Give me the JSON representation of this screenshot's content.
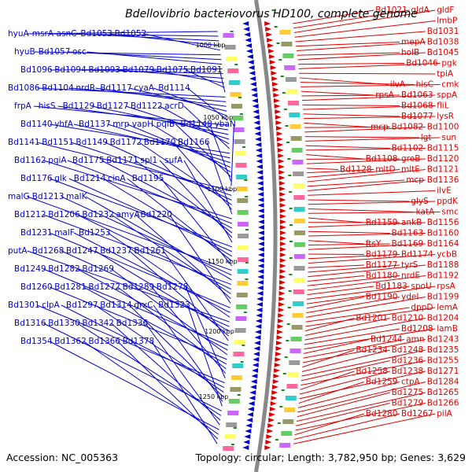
{
  "title": "Bdellovibrio bacteriovorus HD100, complete genome",
  "footer": {
    "accession": "Accession: NC_005363",
    "summary": "Topology: circular; Length: 3,782,950 bp; Genes: 3,629"
  },
  "colors": {
    "left": "#0000cc",
    "right": "#dd0000",
    "backbone": "#888888",
    "tick": "#1a8a1a"
  },
  "kbp_labels": [
    "1000 kbp",
    "1050 kbp",
    "1100 kbp",
    "1150 kbp",
    "1200 kbp",
    "1250 kbp"
  ],
  "left_labels": [
    "hyuA",
    "msrA",
    "asnC",
    "Bd1053",
    "Bd1052",
    "hyuB",
    "Bd1057",
    "osc",
    "Bd1096",
    "Bd1094",
    "Bd1093",
    "Bd1079",
    "Bd1075",
    "Bd1091",
    "Bd1086",
    "Bd1104",
    "nrdR",
    "Bd1117",
    "cyaA",
    "Bd1114",
    "frpA",
    "hisS",
    "Bd1129",
    "Bd1127",
    "Bd1122",
    "acrD",
    "Bd1140",
    "yhfA",
    "Bd1137",
    "mrp",
    "vapH",
    "pqiB",
    "Bd1148",
    "ybaN",
    "Bd1141",
    "Bd1151",
    "Bd1149",
    "Bd1172",
    "Bd1170",
    "Bd1166",
    "Bd1162",
    "pqiA",
    "Bd1175",
    "Bd1171",
    "spl1",
    "sufA",
    "Bd1176",
    "glk",
    "Bd1214",
    "cinA",
    "Bd1195",
    "malG",
    "Bd1213",
    "malK",
    "Bd1212",
    "Bd1206",
    "Bd1232",
    "amyA",
    "Bd1220",
    "Bd1231",
    "malF",
    "Bd1253",
    "putA",
    "Bd1268",
    "Bd1247",
    "Bd1237",
    "Bd1261",
    "Bd1249",
    "Bd1282",
    "Bd1269",
    "Bd1260",
    "Bd1281",
    "Bd1272",
    "Bd1289",
    "Bd1278",
    "Bd1301",
    "clpA",
    "Bd1297",
    "Bd1314",
    "grxC",
    "Bd1323",
    "Bd1316",
    "Bd1330",
    "Bd1342",
    "Bd1336",
    "Bd1354",
    "Bd1362",
    "Bd1366",
    "Bd1378"
  ],
  "right_labels": [
    "Bd1021",
    "gldA",
    "gldF",
    "lmbP",
    "Bd1031",
    "mepA",
    "Bd1038",
    "holB",
    "Bd1045",
    "Bd1046",
    "pgk",
    "tpiA",
    "ilvA",
    "hisC",
    "cmk",
    "rpsA",
    "Bd1063",
    "sppA",
    "Bd1068",
    "fliL",
    "Bd1077",
    "lysR",
    "mcp",
    "Bd1082",
    "Bd1100",
    "lgt",
    "sun",
    "Bd1102",
    "Bd1115",
    "Bd1108",
    "greB",
    "Bd1120",
    "Bd1128",
    "mltD",
    "mltE",
    "Bd1121",
    "mcp",
    "Bd1136",
    "ilvE",
    "glyS",
    "ppdK",
    "katA",
    "smc",
    "Bd1159",
    "ankB",
    "Bd1156",
    "Bd1163",
    "Bd1160",
    "ftsY",
    "Bd1169",
    "Bd1164",
    "Bd1179",
    "Bd1174",
    "ycbB",
    "Bd1177",
    "tyrS",
    "Bd1188",
    "Bd1180",
    "nrdE",
    "Bd1192",
    "Bd1183",
    "spoU",
    "rpsA",
    "Bd1190",
    "ydeI",
    "Bd1199",
    "dppD",
    "lemA",
    "Bd1201",
    "Bd1210",
    "Bd1204",
    "Bd1208",
    "lamB",
    "Bd1244",
    "amn",
    "Bd1243",
    "Bd1234",
    "Bd1248",
    "Bd1235",
    "Bd1236",
    "Bd1255",
    "Bd1258",
    "Bd1238",
    "Bd1271",
    "Bd1259",
    "ctpA",
    "Bd1284",
    "Bd1275",
    "Bd1265",
    "Bd1279",
    "Bd1266",
    "Bd1280",
    "Bd1267",
    "pilA"
  ]
}
